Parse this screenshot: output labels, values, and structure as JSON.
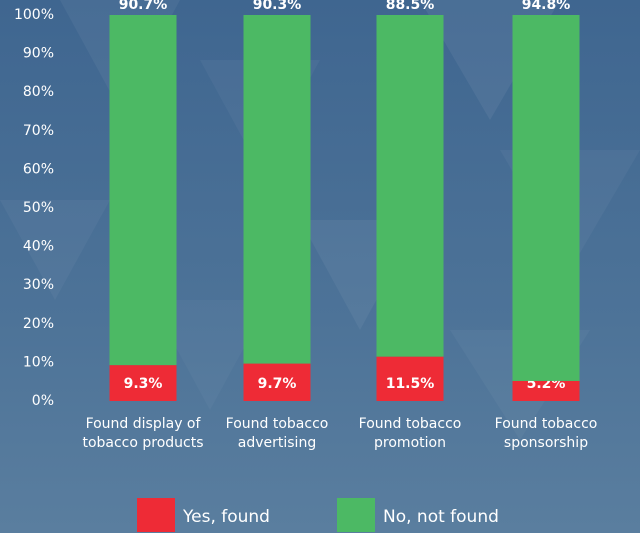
{
  "chart_data": {
    "type": "stacked_bar",
    "categories": [
      [
        "Found display of",
        "tobacco products"
      ],
      [
        "Found tobacco",
        "advertising"
      ],
      [
        "Found tobacco",
        "promotion"
      ],
      [
        "Found tobacco",
        "sponsorship"
      ]
    ],
    "series": [
      {
        "name": "Yes, found",
        "color": "#ee2b36",
        "values": [
          9.3,
          9.7,
          11.5,
          5.2
        ],
        "value_labels": [
          "9.3%",
          "9.7%",
          "11.5%",
          "5.2%"
        ]
      },
      {
        "name": "No, not found",
        "color": "#4cb964",
        "values": [
          90.7,
          90.3,
          88.5,
          94.8
        ],
        "value_labels": [
          "90.7%",
          "90.3%",
          "88.5%",
          "94.8%"
        ]
      }
    ],
    "ylim": [
      0,
      100
    ],
    "yticks": [
      {
        "value": 0,
        "label": "0%"
      },
      {
        "value": 10,
        "label": "10%"
      },
      {
        "value": 20,
        "label": "20%"
      },
      {
        "value": 30,
        "label": "30%"
      },
      {
        "value": 40,
        "label": "40%"
      },
      {
        "value": 50,
        "label": "50%"
      },
      {
        "value": 60,
        "label": "60%"
      },
      {
        "value": 70,
        "label": "70%"
      },
      {
        "value": 80,
        "label": "80%"
      },
      {
        "value": 90,
        "label": "90%"
      },
      {
        "value": 100,
        "label": "100%"
      }
    ],
    "grid": false,
    "legend": "bottom"
  }
}
